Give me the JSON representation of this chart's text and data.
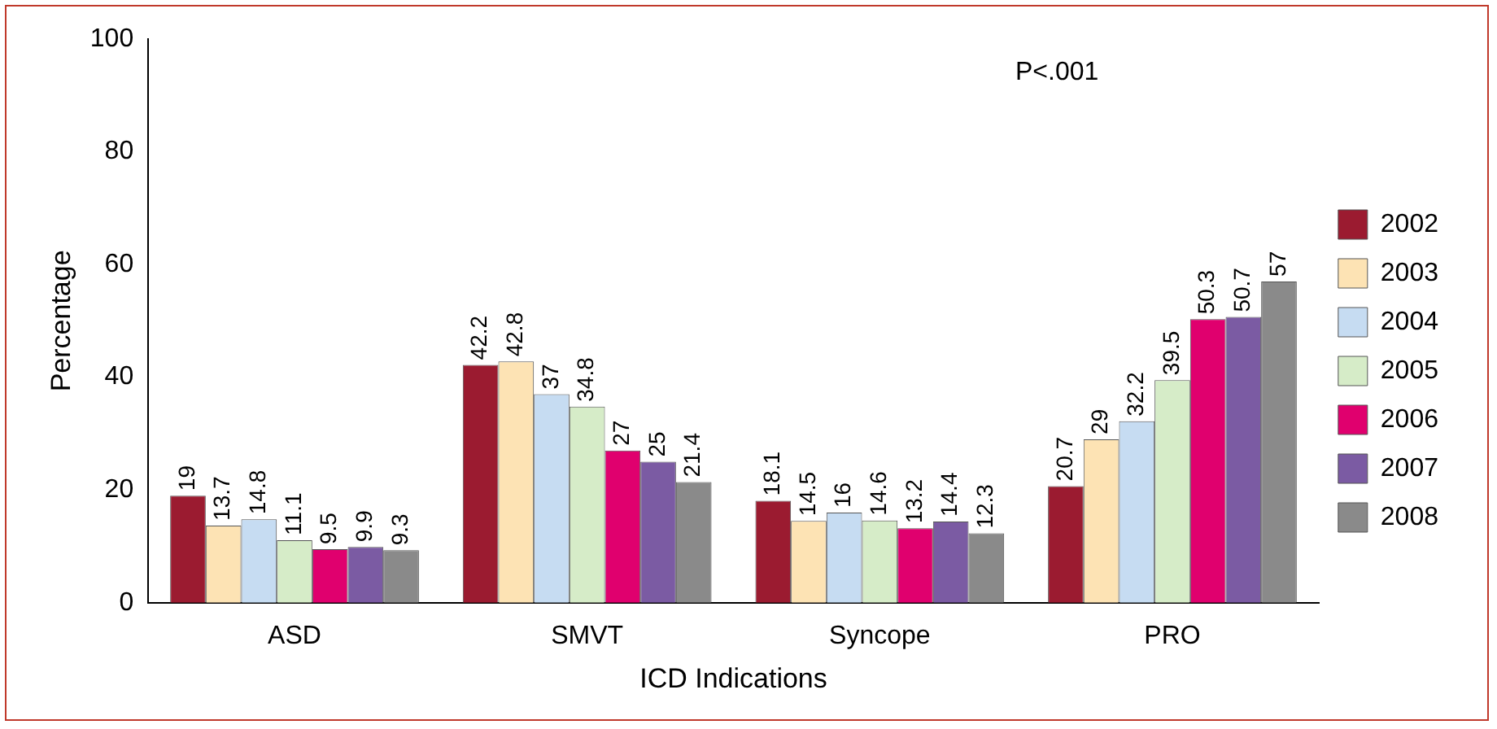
{
  "chart_data": {
    "type": "bar",
    "xlabel": "ICD Indications",
    "ylabel": "Percentage",
    "categories": [
      "ASD",
      "SMVT",
      "Syncope",
      "PRO"
    ],
    "series": [
      {
        "name": "2002",
        "color": "#9b1b30",
        "values": [
          19,
          42.2,
          18.1,
          20.7
        ]
      },
      {
        "name": "2003",
        "color": "#fde3b4",
        "values": [
          13.7,
          42.8,
          14.5,
          29
        ]
      },
      {
        "name": "2004",
        "color": "#c6dcf2",
        "values": [
          14.8,
          37,
          16,
          32.2
        ]
      },
      {
        "name": "2005",
        "color": "#d6ecc8",
        "values": [
          11.1,
          34.8,
          14.6,
          39.5
        ]
      },
      {
        "name": "2006",
        "color": "#e0006e",
        "values": [
          9.5,
          27,
          13.2,
          50.3
        ]
      },
      {
        "name": "2007",
        "color": "#7b5ba3",
        "values": [
          9.9,
          25,
          14.4,
          50.7
        ]
      },
      {
        "name": "2008",
        "color": "#8a8a8a",
        "values": [
          9.3,
          21.4,
          12.3,
          57
        ]
      }
    ],
    "ylim": [
      0,
      100
    ],
    "yticks": [
      0,
      20,
      40,
      60,
      80,
      100
    ],
    "grid": false,
    "legend": "right",
    "data_labels": true,
    "annotations": [
      "P<.001"
    ]
  }
}
